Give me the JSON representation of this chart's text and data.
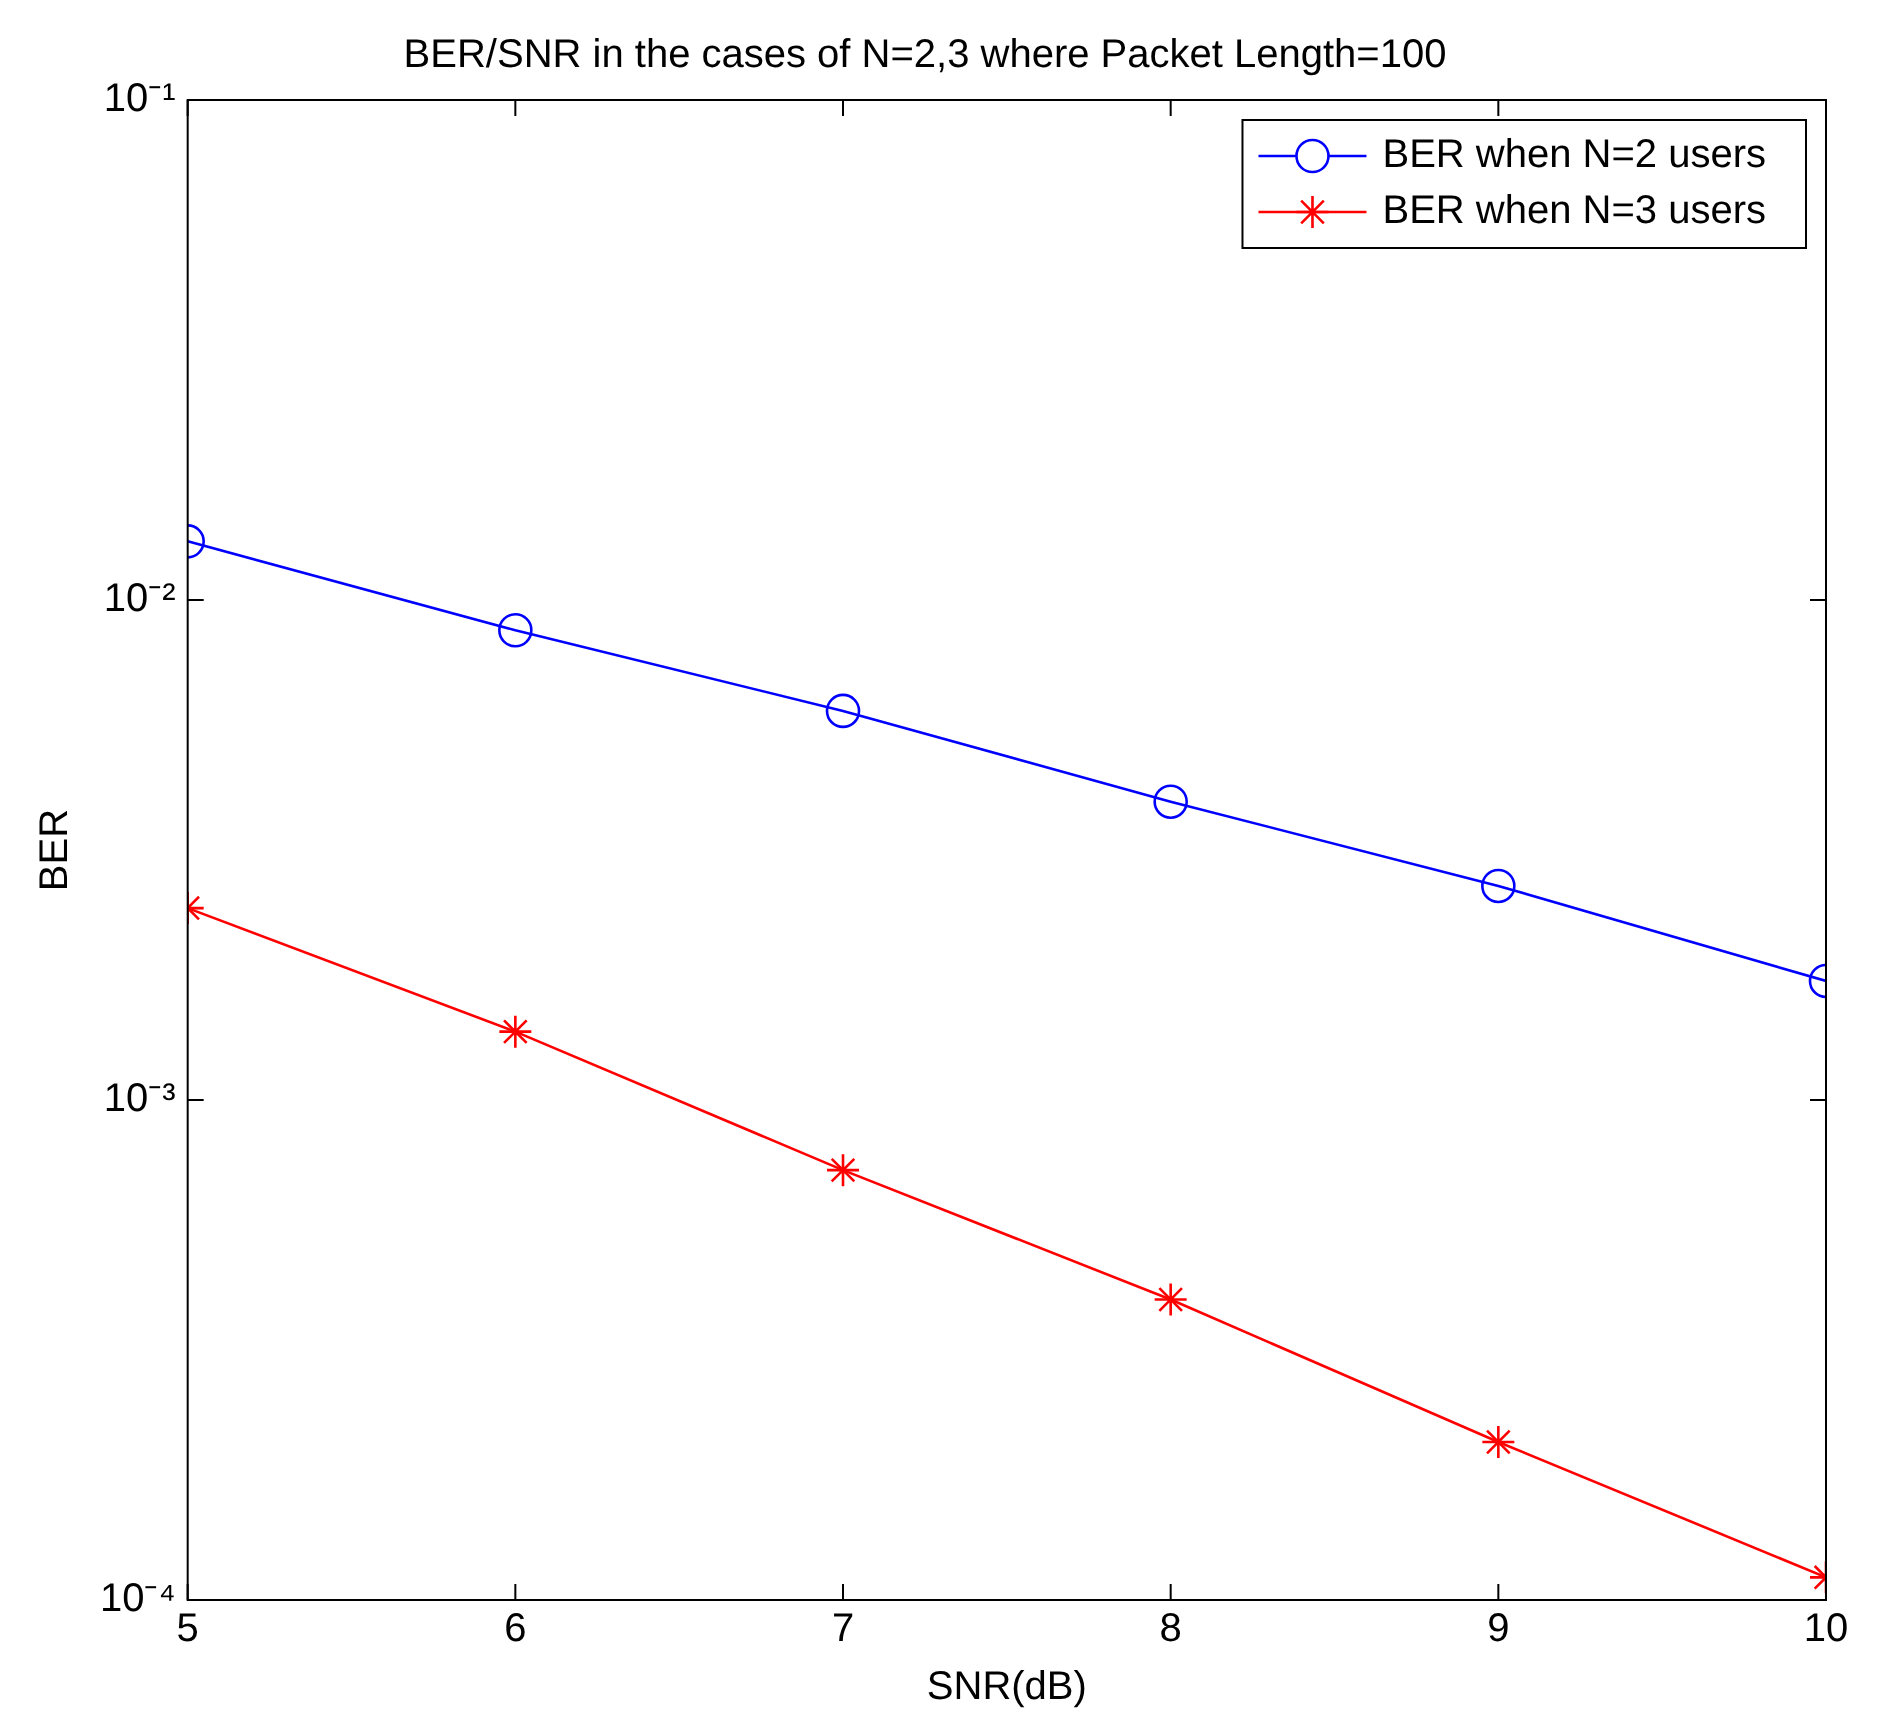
{
  "chart_data": {
    "type": "line",
    "title": "BER/SNR in the cases of N=2,3 where Packet Length=100",
    "xlabel": "SNR(dB)",
    "ylabel": "BER",
    "x": [
      5,
      6,
      7,
      8,
      9,
      10
    ],
    "series": [
      {
        "name": "BER when N=2 users",
        "color": "#0000ff",
        "marker": "circle",
        "values": [
          0.0131,
          0.0087,
          0.006,
          0.00395,
          0.00268,
          0.00173
        ]
      },
      {
        "name": "BER when N=3 users",
        "color": "#ff0000",
        "marker": "cross",
        "values": [
          0.00242,
          0.00137,
          0.000724,
          0.000399,
          0.000207,
          0.000111
        ]
      }
    ],
    "log": "y",
    "xlim": [
      5,
      10
    ],
    "xticks": [
      5,
      6,
      7,
      8,
      9,
      10
    ],
    "ylim": [
      0.0001,
      0.1
    ],
    "yticks": [
      {
        "value": 0.0001,
        "label": "10⁻⁴"
      },
      {
        "value": 0.001,
        "label": "10⁻³"
      },
      {
        "value": 0.01,
        "label": "10⁻²"
      },
      {
        "value": 0.1,
        "label": "10⁻¹"
      }
    ],
    "grid": false,
    "legend": "top right",
    "line_style": "solid"
  }
}
